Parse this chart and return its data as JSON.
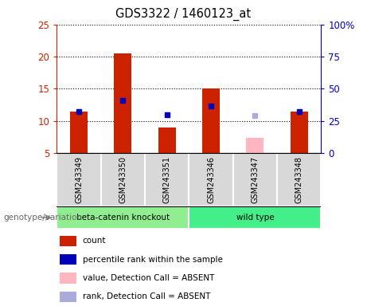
{
  "title": "GDS3322 / 1460123_at",
  "samples": [
    "GSM243349",
    "GSM243350",
    "GSM243351",
    "GSM243346",
    "GSM243347",
    "GSM243348"
  ],
  "count_values": [
    11.5,
    20.5,
    9.0,
    15.0,
    null,
    11.5
  ],
  "absent_bar_values": [
    null,
    null,
    null,
    null,
    7.3,
    null
  ],
  "rank_dots": [
    11.5,
    13.2,
    11.0,
    12.3,
    null,
    11.5
  ],
  "absent_rank_dots": [
    null,
    null,
    null,
    null,
    10.8,
    null
  ],
  "bar_color": "#cc2200",
  "absent_bar_color": "#FFB6C1",
  "dot_color": "#0000BB",
  "absent_dot_color": "#AAAADD",
  "ylim_left": [
    5,
    25
  ],
  "ylim_right": [
    0,
    100
  ],
  "yticks_left": [
    5,
    10,
    15,
    20,
    25
  ],
  "yticks_right": [
    0,
    25,
    50,
    75,
    100
  ],
  "left_tick_color": "#cc2200",
  "right_tick_color": "#0000BB",
  "bar_width": 0.4,
  "group1_label": "beta-catenin knockout",
  "group2_label": "wild type",
  "group1_color": "#90EE90",
  "group2_color": "#44EE88",
  "group_label": "genotype/variation",
  "legend_items": [
    {
      "label": "count",
      "color": "#cc2200"
    },
    {
      "label": "percentile rank within the sample",
      "color": "#0000BB"
    },
    {
      "label": "value, Detection Call = ABSENT",
      "color": "#FFB6C1"
    },
    {
      "label": "rank, Detection Call = ABSENT",
      "color": "#AAAADD"
    }
  ]
}
